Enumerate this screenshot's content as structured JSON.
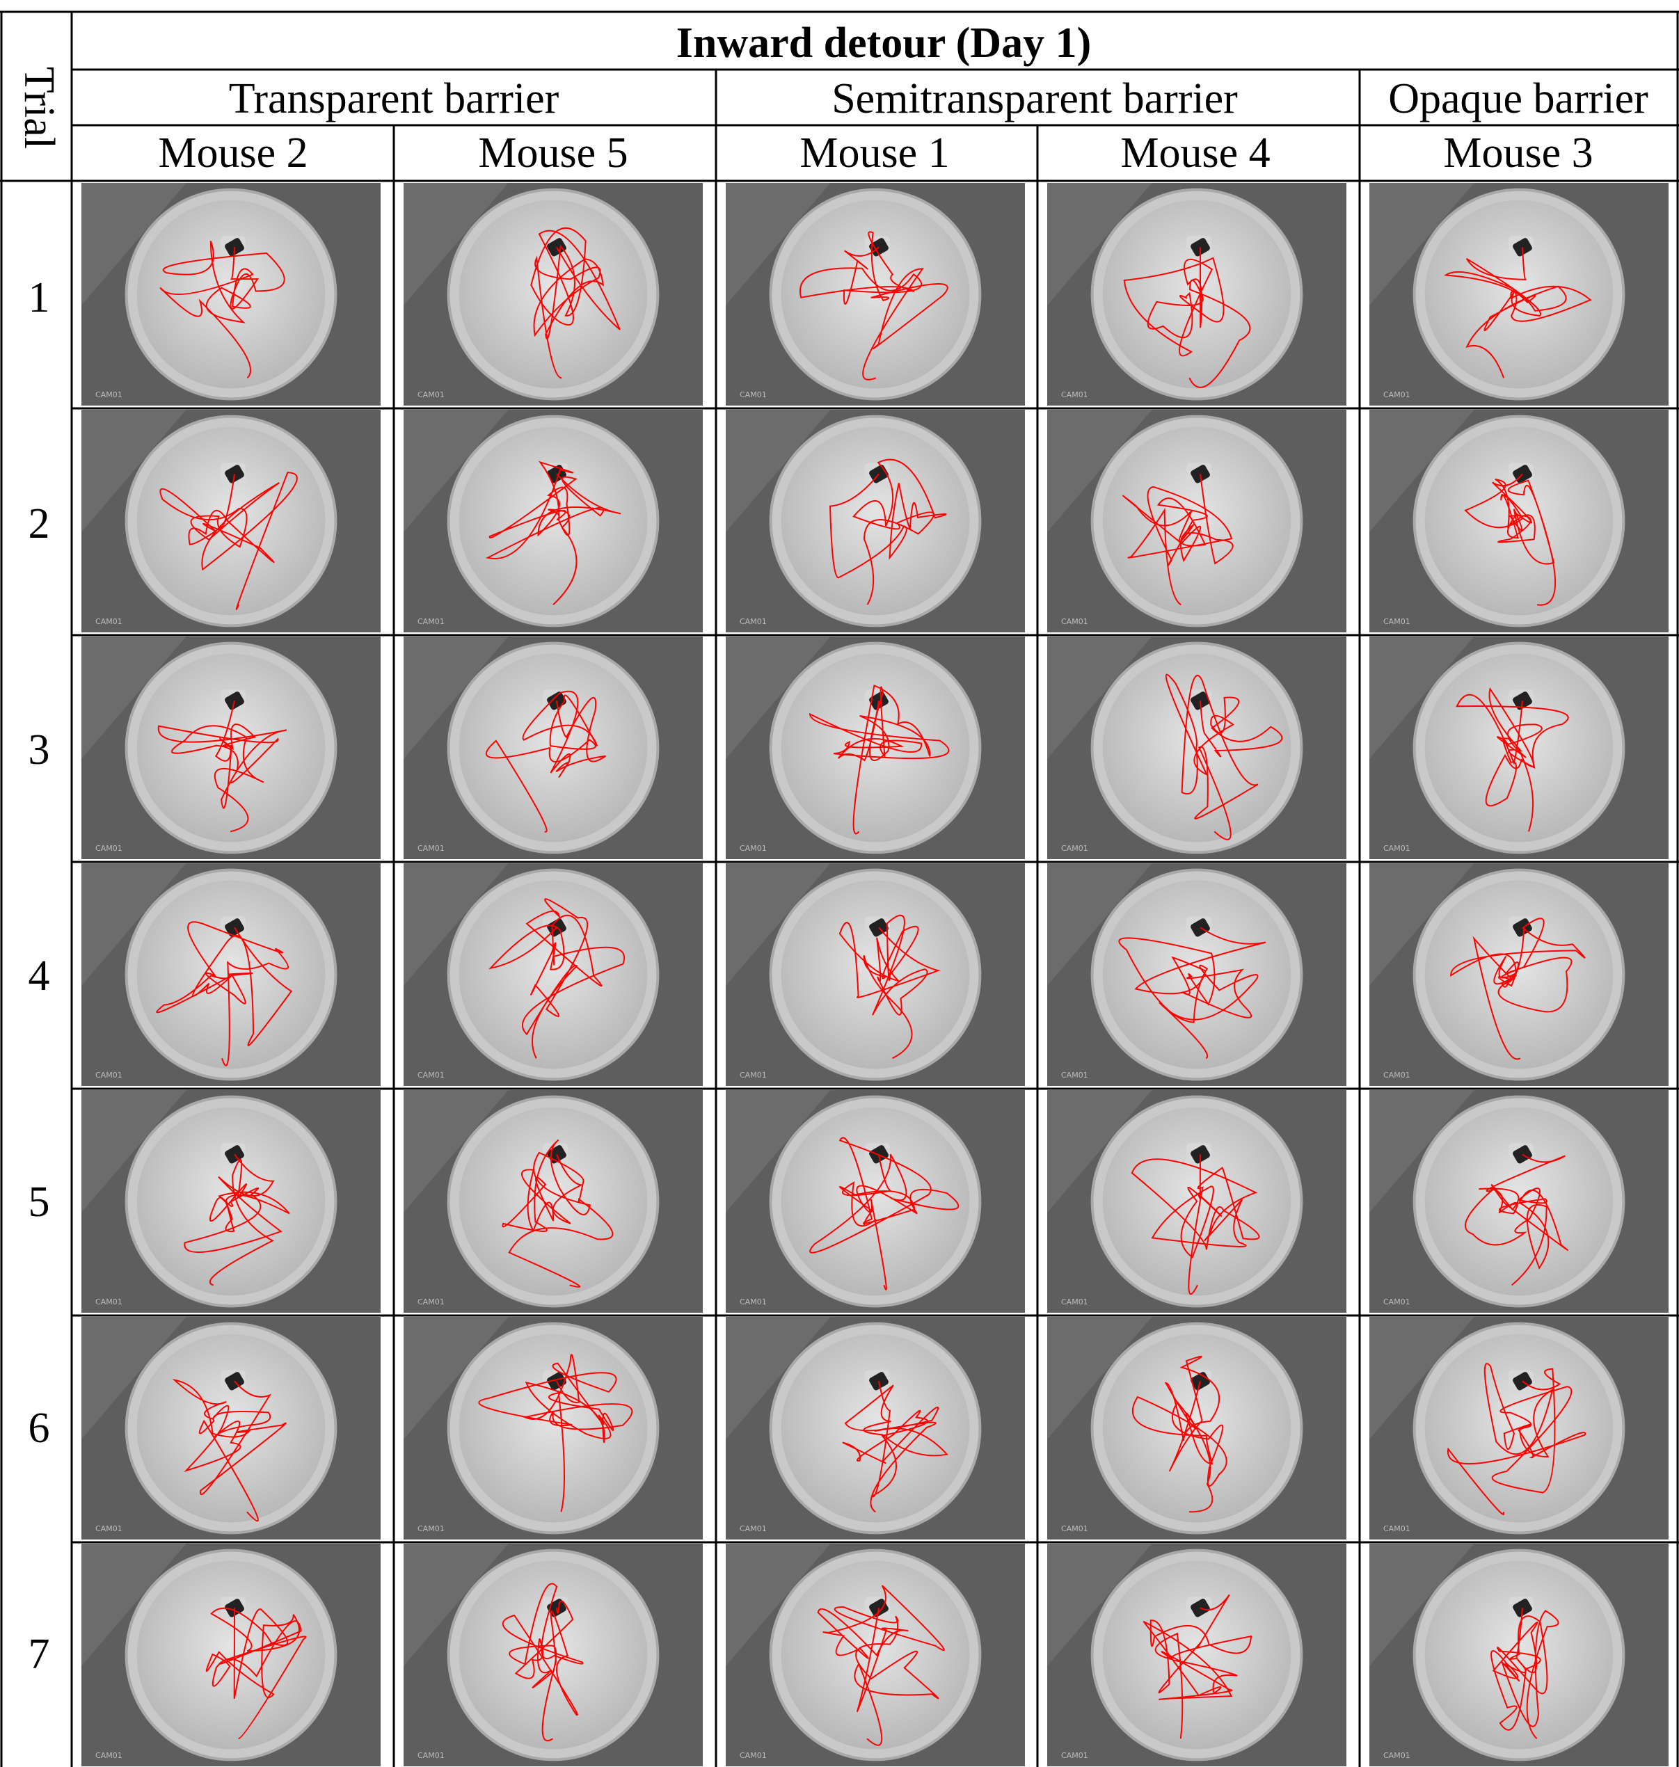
{
  "table": {
    "title": "Inward detour (Day 1)",
    "trial_header": "Trial",
    "barriers": [
      {
        "label": "Transparent barrier"
      },
      {
        "label": "Semitransparent barrier"
      },
      {
        "label": "Opaque barrier"
      }
    ],
    "mice": [
      {
        "label": "Mouse 2"
      },
      {
        "label": "Mouse 5"
      },
      {
        "label": "Mouse 1"
      },
      {
        "label": "Mouse 4"
      },
      {
        "label": "Mouse 3"
      }
    ],
    "trials": [
      {
        "label": "1"
      },
      {
        "label": "2"
      },
      {
        "label": "3"
      },
      {
        "label": "4"
      },
      {
        "label": "5"
      },
      {
        "label": "6"
      },
      {
        "label": "7"
      }
    ],
    "camera_label": "CAM01"
  },
  "colors": {
    "track": "#ff0000",
    "arena": "#c9c9c9",
    "floor": "#5e5e5e",
    "grid": "#000000"
  },
  "icons": {
    "barrier": "barrier-icon"
  }
}
